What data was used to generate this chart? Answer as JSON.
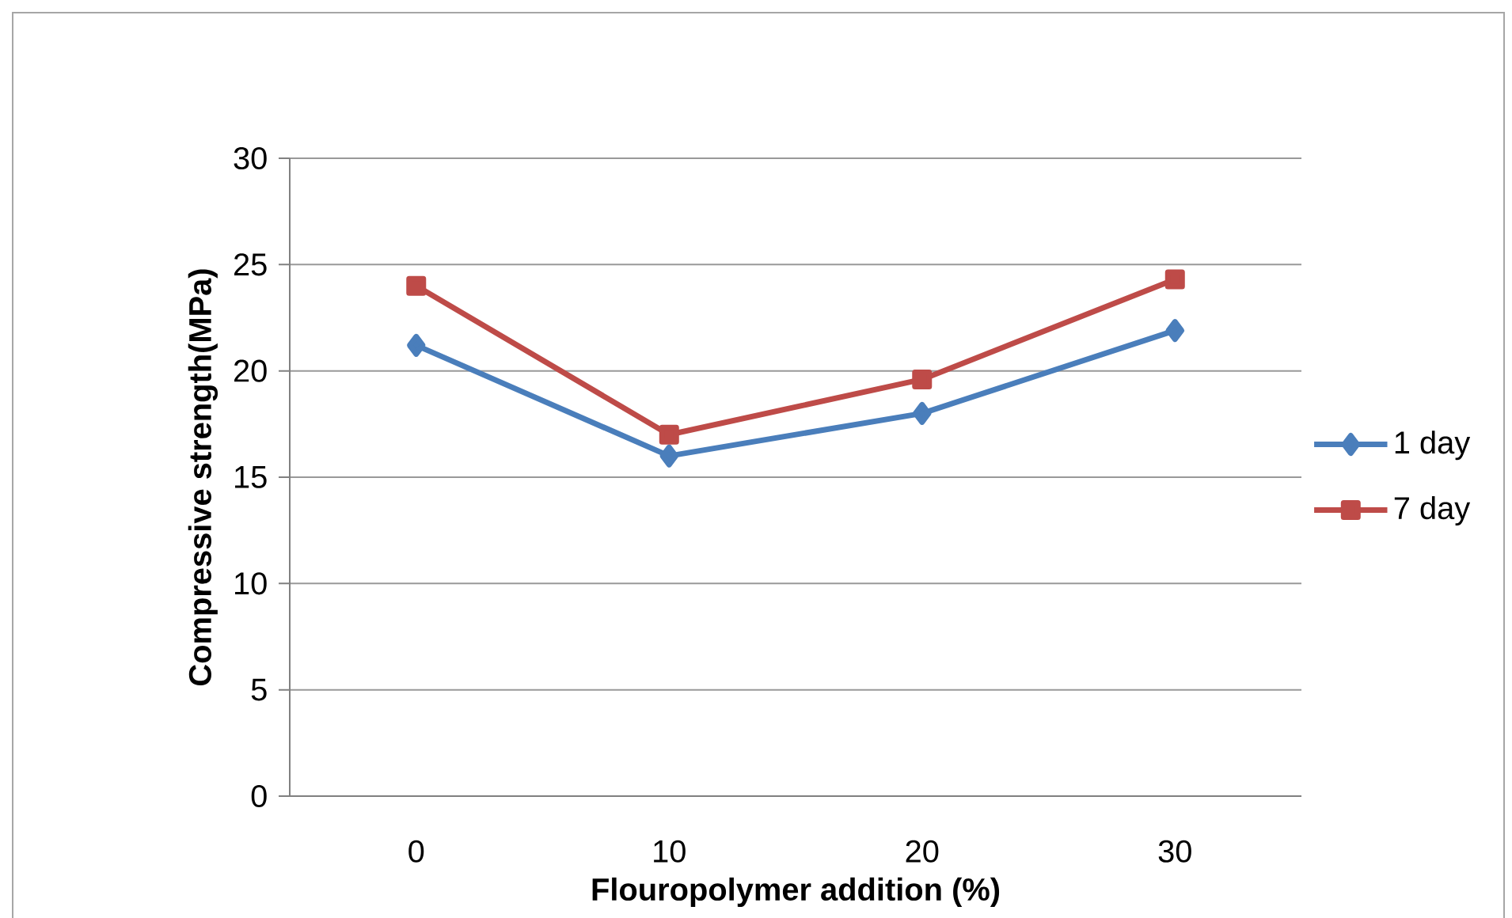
{
  "chart_data": {
    "type": "line",
    "xlabel": "Flouropolymer addition (%)",
    "ylabel": "Compressive strength(MPa)",
    "categories": [
      "0",
      "10",
      "20",
      "30"
    ],
    "series": [
      {
        "name": "1 day",
        "color": "#4a7ebb",
        "marker": "diamond",
        "values": [
          21.2,
          16.0,
          18.0,
          21.9
        ]
      },
      {
        "name": "7 day",
        "color": "#be4b48",
        "marker": "square",
        "values": [
          24.0,
          17.0,
          19.6,
          24.3
        ]
      }
    ],
    "ylim": [
      0,
      30
    ],
    "yticks": [
      0,
      5,
      10,
      15,
      20,
      25,
      30
    ],
    "grid": "y",
    "legend": "right",
    "line_style": "solid"
  }
}
